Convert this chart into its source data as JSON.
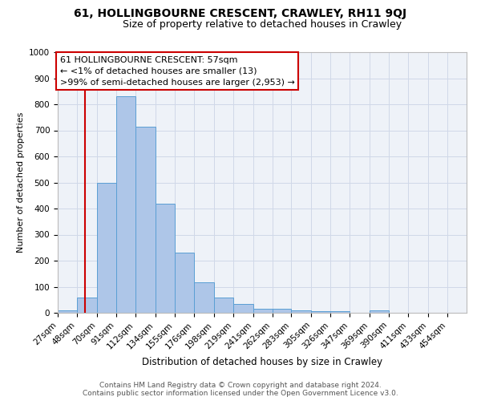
{
  "title": "61, HOLLINGBOURNE CRESCENT, CRAWLEY, RH11 9QJ",
  "subtitle": "Size of property relative to detached houses in Crawley",
  "xlabel": "Distribution of detached houses by size in Crawley",
  "ylabel": "Number of detached properties",
  "footer_line1": "Contains HM Land Registry data © Crown copyright and database right 2024.",
  "footer_line2": "Contains public sector information licensed under the Open Government Licence v3.0.",
  "bin_labels": [
    "27sqm",
    "48sqm",
    "70sqm",
    "91sqm",
    "112sqm",
    "134sqm",
    "155sqm",
    "176sqm",
    "198sqm",
    "219sqm",
    "241sqm",
    "262sqm",
    "283sqm",
    "305sqm",
    "326sqm",
    "347sqm",
    "369sqm",
    "390sqm",
    "411sqm",
    "433sqm",
    "454sqm"
  ],
  "bar_values": [
    8,
    60,
    500,
    830,
    715,
    420,
    232,
    117,
    57,
    35,
    16,
    14,
    10,
    5,
    6,
    0,
    9,
    0,
    0,
    0,
    0
  ],
  "bar_color": "#aec6e8",
  "bar_edge_color": "#5a9fd4",
  "grid_color": "#d0d8e8",
  "bg_color": "#eef2f8",
  "annotation_box_color": "#cc0000",
  "annotation_line1": "61 HOLLINGBOURNE CRESCENT: 57sqm",
  "annotation_line2": "← <1% of detached houses are smaller (13)",
  "annotation_line3": ">99% of semi-detached houses are larger (2,953) →",
  "property_line_x": 57,
  "ylim": [
    0,
    1000
  ],
  "yticks": [
    0,
    100,
    200,
    300,
    400,
    500,
    600,
    700,
    800,
    900,
    1000
  ],
  "bin_edges": [
    27,
    48,
    70,
    91,
    112,
    134,
    155,
    176,
    198,
    219,
    241,
    262,
    283,
    305,
    326,
    347,
    369,
    390,
    411,
    433,
    454
  ],
  "title_fontsize": 10,
  "subtitle_fontsize": 9,
  "ylabel_fontsize": 8,
  "xlabel_fontsize": 8.5,
  "annotation_fontsize": 8,
  "footer_fontsize": 6.5,
  "tick_fontsize": 7.5
}
